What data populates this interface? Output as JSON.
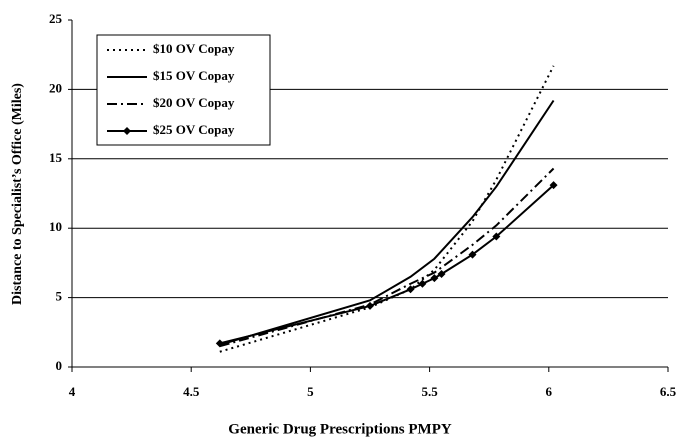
{
  "chart_data": {
    "type": "line",
    "xlabel": "Generic Drug Prescriptions PMPY",
    "ylabel": "Distance to Specialist’s Office (Miles)",
    "xlim": [
      4,
      6.5
    ],
    "xticks": [
      4,
      4.5,
      5,
      5.5,
      6,
      6.5
    ],
    "ylim": [
      0,
      25
    ],
    "yticks": [
      0,
      5,
      10,
      15,
      20,
      25
    ],
    "grid": true,
    "legend": "upper left",
    "series": [
      {
        "name": "$10 OV Copay",
        "color": "#000000",
        "style": "dotted",
        "marker": "none",
        "x": [
          4.62,
          5.25,
          5.42,
          5.52,
          5.68,
          5.78,
          6.02
        ],
        "values": [
          1.1,
          4.3,
          5.6,
          7.0,
          10.5,
          13.5,
          21.7
        ]
      },
      {
        "name": "$15 OV Copay",
        "color": "#000000",
        "style": "solid",
        "marker": "none",
        "x": [
          4.62,
          5.25,
          5.42,
          5.52,
          5.68,
          5.78,
          6.02
        ],
        "values": [
          1.6,
          4.8,
          6.5,
          7.8,
          10.8,
          13.0,
          19.2
        ]
      },
      {
        "name": "$20 OV Copay",
        "color": "#000000",
        "style": "dashdot",
        "marker": "none",
        "x": [
          4.62,
          5.25,
          5.42,
          5.52,
          5.68,
          5.78,
          6.02
        ],
        "values": [
          1.5,
          4.5,
          6.0,
          6.8,
          8.8,
          10.2,
          14.3
        ]
      },
      {
        "name": "$25 OV Copay",
        "color": "#000000",
        "style": "solid",
        "marker": "diamond",
        "x": [
          4.62,
          5.25,
          5.42,
          5.47,
          5.52,
          5.55,
          5.68,
          5.78,
          6.02
        ],
        "values": [
          1.7,
          4.4,
          5.6,
          6.0,
          6.4,
          6.7,
          8.1,
          9.4,
          13.1
        ]
      }
    ]
  }
}
